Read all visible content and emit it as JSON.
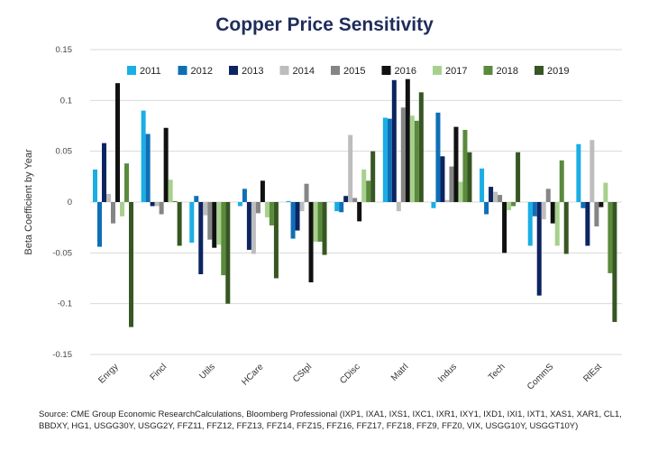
{
  "chart_data": {
    "type": "bar",
    "title": "Copper Price Sensitivity",
    "xlabel": "",
    "ylabel": "Beta Coefficient by Year",
    "ylim": [
      -0.15,
      0.15
    ],
    "yticks": [
      0.15,
      0.1,
      0.05,
      0,
      -0.05,
      -0.1,
      -0.15
    ],
    "ytick_labels": [
      "0.15",
      "0.1",
      "0.05",
      "0",
      "-0.05",
      "-0.1",
      "-0.15"
    ],
    "grid": true,
    "legend_position": "top-center",
    "categories": [
      "Enrgy",
      "Fincl",
      "Utils",
      "HCare",
      "CStpl",
      "CDisc",
      "Matrl",
      "Indus",
      "Tech",
      "CommS",
      "RlEst"
    ],
    "series": [
      {
        "name": "2011",
        "color": "#1aaee5",
        "values": [
          0.032,
          0.09,
          -0.04,
          -0.004,
          0.001,
          -0.009,
          0.083,
          -0.006,
          0.033,
          -0.043,
          0.057
        ]
      },
      {
        "name": "2012",
        "color": "#0f6fb6",
        "values": [
          -0.044,
          0.067,
          0.006,
          0.013,
          -0.036,
          -0.01,
          0.082,
          0.088,
          -0.012,
          -0.014,
          -0.006
        ]
      },
      {
        "name": "2013",
        "color": "#0c2461",
        "values": [
          0.058,
          -0.004,
          -0.071,
          -0.047,
          -0.028,
          0.006,
          0.12,
          0.045,
          0.015,
          -0.092,
          -0.043
        ]
      },
      {
        "name": "2014",
        "color": "#bdbdbd",
        "values": [
          0.008,
          -0.004,
          -0.013,
          -0.051,
          -0.009,
          0.066,
          -0.009,
          0.002,
          0.01,
          -0.017,
          0.061
        ]
      },
      {
        "name": "2015",
        "color": "#858585",
        "values": [
          -0.021,
          -0.012,
          -0.037,
          -0.011,
          0.018,
          0.004,
          0.093,
          0.035,
          0.007,
          0.013,
          -0.024
        ]
      },
      {
        "name": "2016",
        "color": "#111111",
        "values": [
          0.117,
          0.073,
          -0.045,
          0.021,
          -0.079,
          -0.019,
          0.121,
          0.074,
          -0.05,
          -0.021,
          -0.005
        ]
      },
      {
        "name": "2017",
        "color": "#a8d08d",
        "values": [
          -0.014,
          0.022,
          -0.042,
          -0.015,
          -0.039,
          0.032,
          0.085,
          0.02,
          -0.008,
          -0.043,
          0.019
        ]
      },
      {
        "name": "2018",
        "color": "#5a8a3c",
        "values": [
          0.038,
          0.001,
          -0.072,
          -0.023,
          -0.039,
          0.021,
          0.08,
          0.071,
          -0.004,
          0.041,
          -0.07
        ]
      },
      {
        "name": "2019",
        "color": "#375623",
        "values": [
          -0.123,
          -0.043,
          -0.1,
          -0.075,
          -0.052,
          0.05,
          0.108,
          0.049,
          0.049,
          -0.051,
          -0.118
        ]
      }
    ]
  },
  "source_note": "Source: CME Group Economic ResearchCalculations, Bloomberg Professional (IXP1, IXA1, IXS1, IXC1, IXR1, IXY1, IXD1, IXI1, IXT1, XAS1, XAR1, CL1, BBDXY, HG1, USGG30Y, USGG2Y, FFZ11, FFZ12, FFZ13, FFZ14, FFZ15, FFZ16, FFZ17, FFZ18, FFZ9, FFZ0, VIX, USGG10Y, USGGT10Y)"
}
